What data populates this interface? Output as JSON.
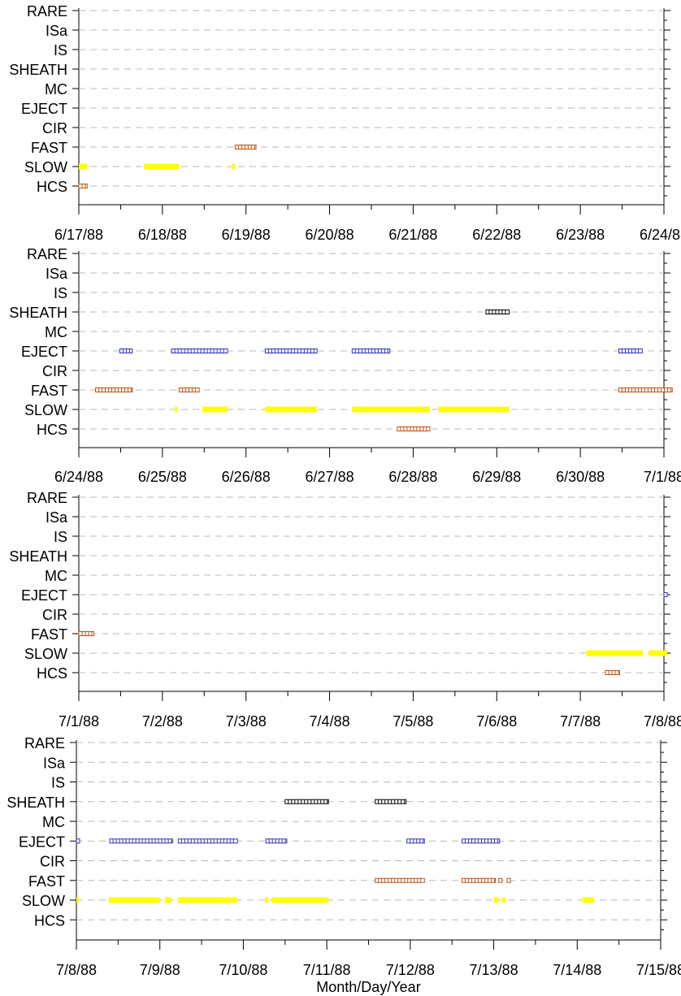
{
  "chart_data": [
    {
      "type": "scatter",
      "y_categories": [
        "RARE",
        "ISa",
        "IS",
        "SHEATH",
        "MC",
        "EJECT",
        "CIR",
        "FAST",
        "SLOW",
        "HCS"
      ],
      "x_ticks": [
        "6/17/88",
        "6/18/88",
        "6/19/88",
        "6/20/88",
        "6/21/88",
        "6/22/88",
        "6/23/88",
        "6/24/88"
      ],
      "xlim": [
        0,
        7
      ],
      "grid": true,
      "series": [
        {
          "category": "SLOW",
          "color": "#ffff00",
          "style": "bar",
          "intervals": [
            [
              0.0,
              0.1
            ],
            [
              0.78,
              1.2
            ],
            [
              1.83,
              1.87
            ]
          ]
        },
        {
          "category": "FAST",
          "color": "#c05010",
          "style": "boxes",
          "intervals": [
            [
              1.87,
              2.12
            ]
          ]
        },
        {
          "category": "HCS",
          "color": "#c05010",
          "style": "boxes",
          "intervals": [
            [
              0.0,
              0.1
            ]
          ]
        }
      ]
    },
    {
      "type": "scatter",
      "y_categories": [
        "RARE",
        "ISa",
        "IS",
        "SHEATH",
        "MC",
        "EJECT",
        "CIR",
        "FAST",
        "SLOW",
        "HCS"
      ],
      "x_ticks": [
        "6/24/88",
        "6/25/88",
        "6/26/88",
        "6/27/88",
        "6/28/88",
        "6/29/88",
        "6/30/88",
        "7/1/88"
      ],
      "xlim": [
        0,
        7
      ],
      "grid": true,
      "series": [
        {
          "category": "SHEATH",
          "color": "#000000",
          "style": "boxes",
          "intervals": [
            [
              4.87,
              5.15
            ]
          ]
        },
        {
          "category": "EJECT",
          "color": "#3030c0",
          "style": "boxes",
          "intervals": [
            [
              0.49,
              0.64
            ],
            [
              1.11,
              1.78
            ],
            [
              2.23,
              2.85
            ],
            [
              3.27,
              3.72
            ],
            [
              6.46,
              6.74
            ]
          ]
        },
        {
          "category": "FAST",
          "color": "#c05010",
          "style": "boxes",
          "intervals": [
            [
              0.2,
              0.64
            ],
            [
              1.2,
              1.44
            ],
            [
              6.46,
              7.1
            ]
          ]
        },
        {
          "category": "SLOW",
          "color": "#ffff00",
          "style": "bar",
          "intervals": [
            [
              1.15,
              1.18
            ],
            [
              1.48,
              1.78
            ],
            [
              2.23,
              2.85
            ],
            [
              3.27,
              4.2
            ],
            [
              4.3,
              5.15
            ]
          ]
        },
        {
          "category": "HCS",
          "color": "#c05010",
          "style": "boxes",
          "intervals": [
            [
              3.81,
              4.2
            ]
          ]
        }
      ]
    },
    {
      "type": "scatter",
      "y_categories": [
        "RARE",
        "ISa",
        "IS",
        "SHEATH",
        "MC",
        "EJECT",
        "CIR",
        "FAST",
        "SLOW",
        "HCS"
      ],
      "x_ticks": [
        "7/1/88",
        "7/2/88",
        "7/3/88",
        "7/4/88",
        "7/5/88",
        "7/6/88",
        "7/7/88",
        "7/8/88"
      ],
      "xlim": [
        0,
        7
      ],
      "grid": true,
      "series": [
        {
          "category": "EJECT",
          "color": "#3030c0",
          "style": "boxes",
          "intervals": [
            [
              7.0,
              7.04
            ]
          ]
        },
        {
          "category": "FAST",
          "color": "#c05010",
          "style": "boxes",
          "intervals": [
            [
              0.0,
              0.18
            ]
          ]
        },
        {
          "category": "SLOW",
          "color": "#ffff00",
          "style": "bar",
          "intervals": [
            [
              6.07,
              6.75
            ],
            [
              6.82,
              7.04
            ]
          ]
        },
        {
          "category": "HCS",
          "color": "#c05010",
          "style": "boxes",
          "intervals": [
            [
              6.3,
              6.47
            ]
          ]
        }
      ]
    },
    {
      "type": "scatter",
      "y_categories": [
        "RARE",
        "ISa",
        "IS",
        "SHEATH",
        "MC",
        "EJECT",
        "CIR",
        "FAST",
        "SLOW",
        "HCS"
      ],
      "x_ticks": [
        "7/8/88",
        "7/9/88",
        "7/10/88",
        "7/11/88",
        "7/12/88",
        "7/13/88",
        "7/14/88",
        "7/15/88"
      ],
      "xlim": [
        0,
        7
      ],
      "xlabel": "Month/Day/Year",
      "grid": true,
      "series": [
        {
          "category": "SHEATH",
          "color": "#000000",
          "style": "boxes",
          "intervals": [
            [
              2.5,
              3.02
            ],
            [
              3.58,
              3.95
            ]
          ]
        },
        {
          "category": "EJECT",
          "color": "#3030c0",
          "style": "boxes",
          "intervals": [
            [
              0.0,
              0.02
            ],
            [
              0.4,
              1.15
            ],
            [
              1.22,
              1.93
            ],
            [
              2.27,
              2.52
            ],
            [
              3.96,
              4.17
            ],
            [
              4.62,
              5.07
            ]
          ]
        },
        {
          "category": "FAST",
          "color": "#c05010",
          "style": "boxes",
          "intervals": [
            [
              3.58,
              4.17
            ],
            [
              4.62,
              5.02
            ],
            [
              5.06,
              5.1
            ],
            [
              5.16,
              5.2
            ]
          ]
        },
        {
          "category": "SLOW",
          "color": "#ffff00",
          "style": "bar",
          "intervals": [
            [
              0.0,
              0.02
            ],
            [
              0.39,
              1.0
            ],
            [
              1.06,
              1.14
            ],
            [
              1.22,
              1.93
            ],
            [
              2.26,
              2.3
            ],
            [
              2.34,
              3.02
            ],
            [
              5.0,
              5.06
            ],
            [
              5.1,
              5.14
            ],
            [
              6.06,
              6.2
            ]
          ]
        }
      ]
    }
  ]
}
